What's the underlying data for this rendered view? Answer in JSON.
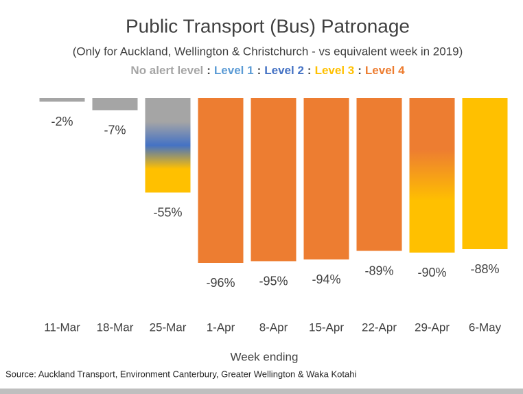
{
  "chart_data": {
    "type": "bar",
    "title": "Public Transport (Bus) Patronage",
    "subtitle": "(Only for Auckland, Wellington & Christchurch - vs equivalent week in 2019)",
    "legend": [
      {
        "name": "No alert level",
        "color": "#a5a5a5"
      },
      {
        "name": "Level 1",
        "color": "#5b9bd5"
      },
      {
        "name": "Level 2",
        "color": "#4472c4"
      },
      {
        "name": "Level 3",
        "color": "#ffc000"
      },
      {
        "name": "Level 4",
        "color": "#ed7d31"
      }
    ],
    "legend_separator": ":",
    "categories": [
      "11-Mar",
      "18-Mar",
      "25-Mar",
      "1-Apr",
      "8-Apr",
      "15-Apr",
      "22-Apr",
      "29-Apr",
      "6-May"
    ],
    "values": [
      -2,
      -7,
      -55,
      -96,
      -95,
      -94,
      -89,
      -90,
      -88
    ],
    "value_labels": [
      "-2%",
      "-7%",
      "-55%",
      "-96%",
      "-95%",
      "-94%",
      "-89%",
      "-90%",
      "-88%"
    ],
    "bar_colors": [
      [
        "#a5a5a5"
      ],
      [
        "#a5a5a5"
      ],
      [
        "#a5a5a5",
        "#a5a5a5",
        "#4472c4",
        "#ffc000",
        "#ffc000"
      ],
      [
        "#ed7d31"
      ],
      [
        "#ed7d31"
      ],
      [
        "#ed7d31"
      ],
      [
        "#ed7d31"
      ],
      [
        "#ed7d31",
        "#ed7d31",
        "#ffc000",
        "#ffc000"
      ],
      [
        "#ffc000"
      ]
    ],
    "ylim": [
      -100,
      0
    ],
    "xlabel": "Week ending",
    "source": "Source: Auckland Transport, Environment Canterbury, Greater Wellington & Waka Kotahi"
  }
}
